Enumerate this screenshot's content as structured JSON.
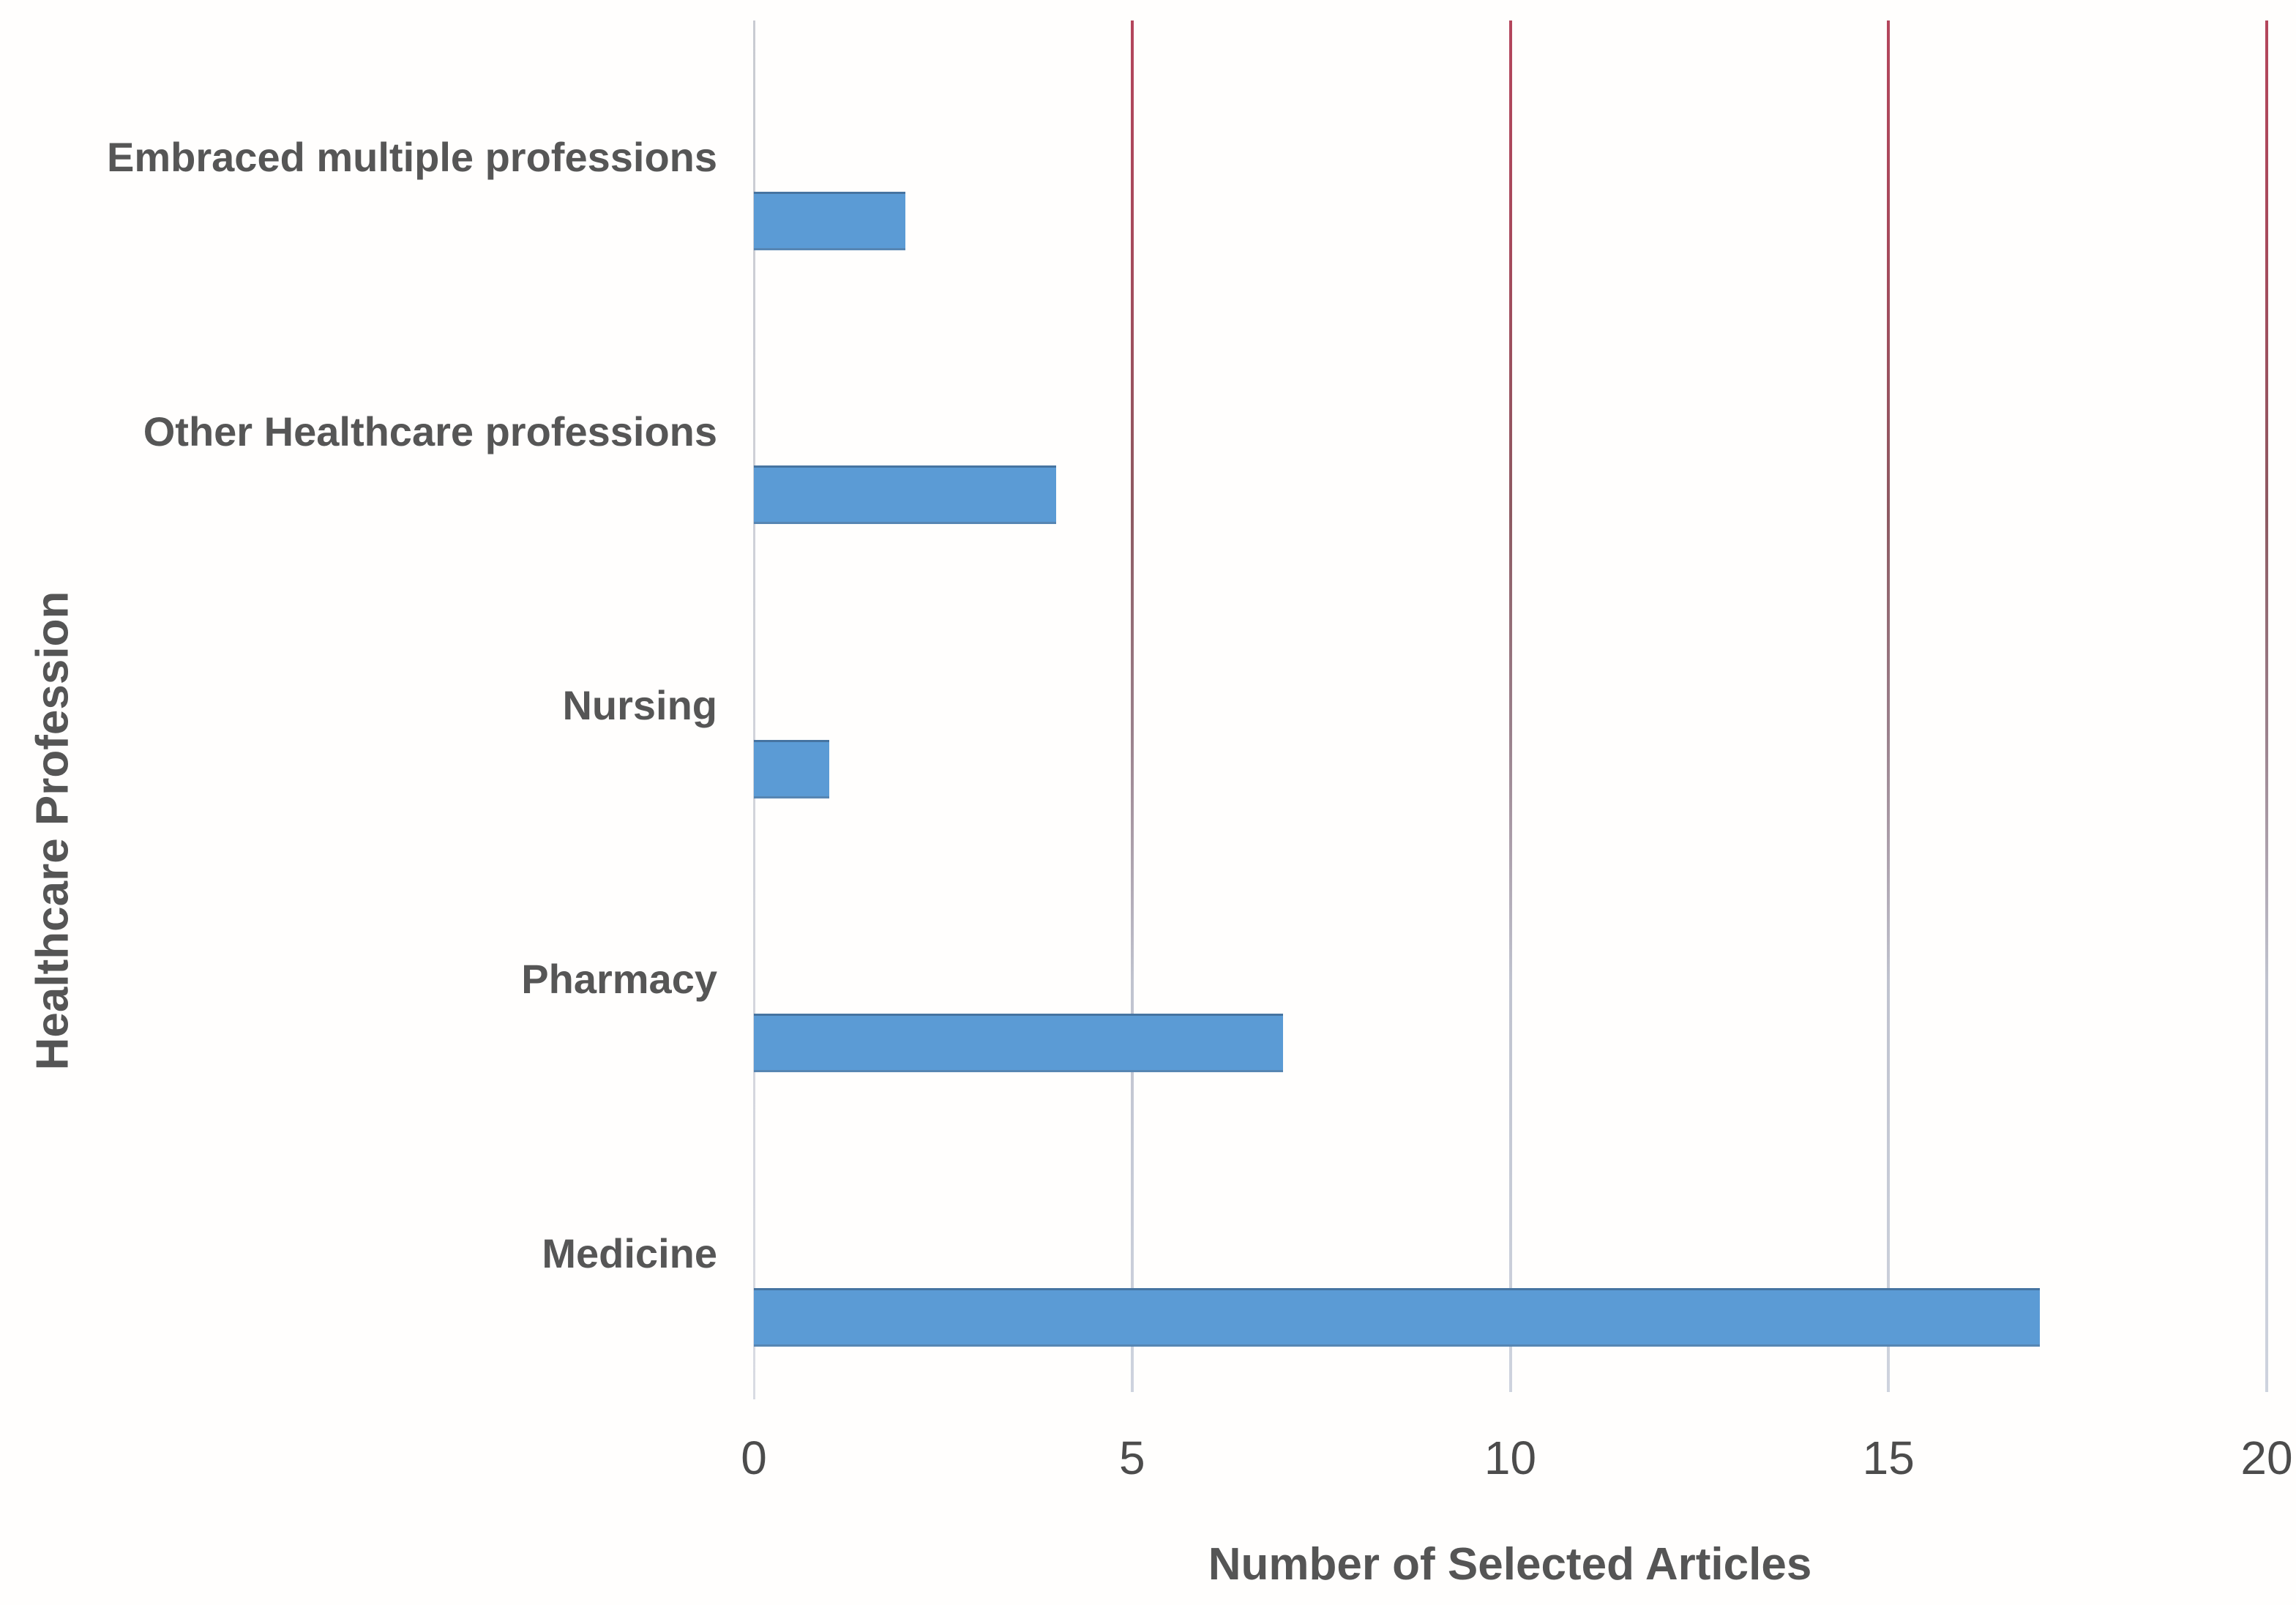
{
  "chart_data": {
    "type": "bar",
    "orientation": "horizontal",
    "title": "",
    "xlabel": "Number of Selected Articles",
    "ylabel": "Healthcare Profession",
    "categories": [
      "Embraced multiple professions",
      "Other Healthcare professions",
      "Nursing",
      "Pharmacy",
      "Medicine"
    ],
    "values": [
      2,
      4,
      1,
      7,
      17
    ],
    "xlim": [
      0,
      20
    ],
    "xticks": [
      0,
      5,
      10,
      15,
      20
    ],
    "grid": "vertical gridlines at 5, 10, 15, 20",
    "legend": "none",
    "colors": {
      "bar": "#5B9BD5",
      "gridline_top": "#B4465C",
      "gridline_bottom": "#CED3DE",
      "axis_line": "#D2D4DB",
      "category_label_text": "#565656",
      "tick_label_text": "#4C4C4C",
      "axis_title_text": "#555555"
    }
  }
}
